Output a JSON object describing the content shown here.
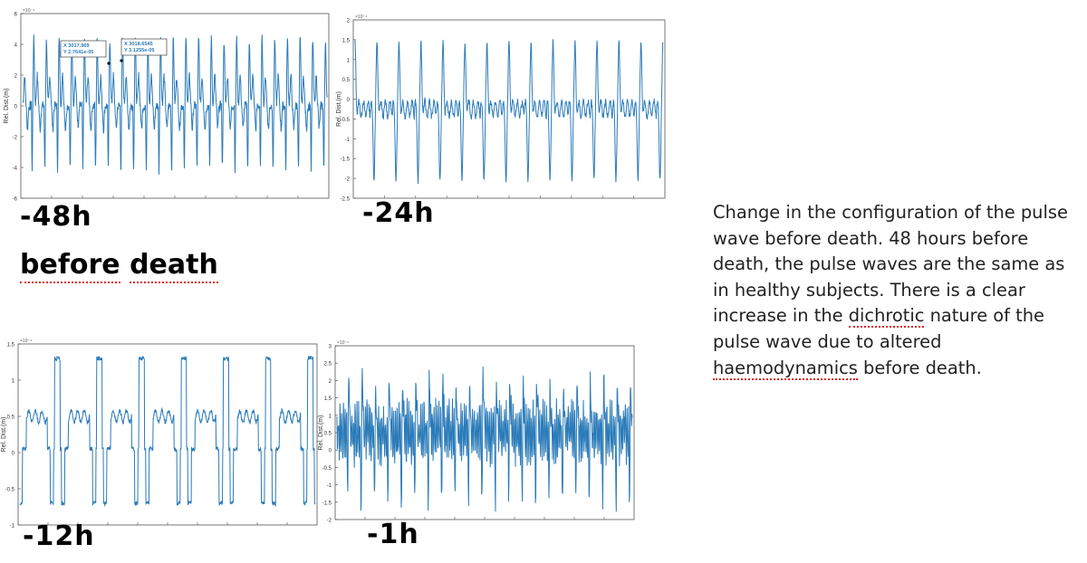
{
  "labels": {
    "p48": "-48h",
    "p24": "-24h",
    "p12": "-12h",
    "p1": "-1h",
    "before_death_1": "before",
    "before_death_2": "death"
  },
  "caption": {
    "part1": "Change in the configuration of the pulse wave before death. 48 hours before death, the pulse waves are the same as in healthy subjects. There is a clear increase in the ",
    "word_dichrotic": "dichrotic",
    "part2": " nature of the pulse wave due to altered ",
    "word_haemo": "haemodynamics",
    "part3": " before death."
  },
  "colors": {
    "line": "#2b7bb9",
    "axis": "#555555",
    "tip_text": "#2b7bb9",
    "spellcheck": "#dd2222"
  },
  "chart_data": [
    {
      "id": "-48h",
      "type": "line",
      "ylabel": "Rel. Dist.(m)",
      "ylim": [
        -6,
        6
      ],
      "yticks": [
        "6",
        "4",
        "2",
        "0",
        "-2",
        "-4",
        "-6"
      ],
      "exponent": "×10⁻⁴",
      "beats": 24,
      "waveform": "normal",
      "datatips": [
        {
          "x": "X 3017.969",
          "y": "Y 2.7641e-05"
        },
        {
          "x": "X 3018.6545",
          "y": "Y 3.1255e-05"
        }
      ]
    },
    {
      "id": "-24h",
      "type": "line",
      "ylabel": "Rel. Dist.(m)",
      "ylim": [
        -2.5,
        2
      ],
      "yticks": [
        "2",
        "1.5",
        "1",
        "0.5",
        "0",
        "-0.5",
        "-1",
        "-1.5",
        "-2",
        "-2.5"
      ],
      "exponent": "×10⁻⁴",
      "beats": 14,
      "waveform": "dichrotic"
    },
    {
      "id": "-12h",
      "type": "line",
      "ylabel": "Rel. Dist.(m)",
      "ylim": [
        -1,
        1.5
      ],
      "yticks": [
        "1.5",
        "1",
        "0.5",
        "0",
        "-0.5",
        "-1"
      ],
      "exponent": "×10⁻⁴",
      "beats": 7,
      "waveform": "square"
    },
    {
      "id": "-1h",
      "type": "line",
      "ylabel": "Rel. Dist.(m)",
      "ylim": [
        -2,
        3
      ],
      "yticks": [
        "3",
        "2.5",
        "2",
        "1.5",
        "1",
        "0.5",
        "0",
        "-0.5",
        "-1",
        "-1.5",
        "-2"
      ],
      "exponent": "×10⁻⁴",
      "beats": 22,
      "waveform": "noisy"
    }
  ]
}
